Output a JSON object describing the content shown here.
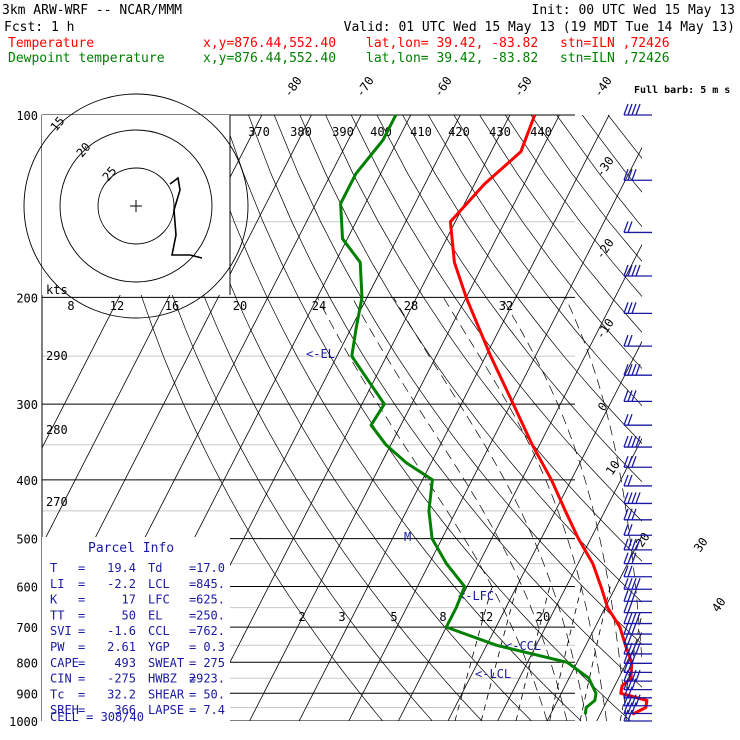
{
  "header": {
    "model": "3km ARW-WRF -- NCAR/MMM",
    "init": "Init: 00 UTC Wed 15 May 13",
    "fcst": "Fcst:    1 h",
    "valid": "Valid: 01 UTC Wed 15 May 13 (19 MDT Tue 14 May 13)",
    "temp_label": "Temperature",
    "dew_label": "Dewpoint temperature",
    "xy": "x,y=876.44,552.40",
    "latlon": "lat,lon= 39.42, -83.82",
    "stn": "stn=ILN ,72426"
  },
  "colors": {
    "temperature": "#ff0000",
    "dewpoint": "#008000",
    "annotation": "#1a1aa0",
    "axes": "#000000"
  },
  "chart_data": {
    "type": "line",
    "title": "",
    "pressure_levels": [
      1000,
      900,
      800,
      700,
      600,
      500,
      400,
      300,
      200,
      100
    ],
    "isotherm_labels": [
      "-80",
      "-70",
      "-60",
      "-50",
      "-40",
      "-30",
      "-20",
      "-10",
      "0",
      "10",
      "20",
      "30",
      "40"
    ],
    "theta_e_labels": [
      "370",
      "380",
      "390",
      "400",
      "410",
      "420",
      "430",
      "440"
    ],
    "theta_labels": [
      "290",
      "280",
      "270"
    ],
    "mixing_ratio_labels": [
      "2",
      "3",
      "5",
      "8",
      "12",
      "20"
    ],
    "upper_mixing_labels": [
      "8",
      "12",
      "16",
      "20",
      "24",
      "28",
      "32"
    ],
    "series": [
      {
        "name": "Temperature",
        "points": [
          [
            975,
            26.5
          ],
          [
            950,
            28.5
          ],
          [
            925,
            28.0
          ],
          [
            900,
            22.0
          ],
          [
            875,
            21.5
          ],
          [
            850,
            22.5
          ],
          [
            800,
            21.0
          ],
          [
            750,
            18.0
          ],
          [
            700,
            15.0
          ],
          [
            650,
            10.5
          ],
          [
            600,
            7.0
          ],
          [
            550,
            3.0
          ],
          [
            500,
            -2.5
          ],
          [
            450,
            -8.0
          ],
          [
            400,
            -14.0
          ],
          [
            350,
            -21.5
          ],
          [
            300,
            -29.5
          ],
          [
            250,
            -39.0
          ],
          [
            200,
            -50.0
          ],
          [
            175,
            -56.0
          ],
          [
            150,
            -61.0
          ],
          [
            130,
            -58.0
          ],
          [
            115,
            -54.0
          ],
          [
            100,
            -55.0
          ]
        ]
      },
      {
        "name": "Dewpoint temperature",
        "points": [
          [
            975,
            17.0
          ],
          [
            950,
            16.5
          ],
          [
            925,
            17.5
          ],
          [
            900,
            17.0
          ],
          [
            875,
            15.5
          ],
          [
            850,
            14.0
          ],
          [
            800,
            8.0
          ],
          [
            750,
            -8.0
          ],
          [
            700,
            -20.0
          ],
          [
            650,
            -20.0
          ],
          [
            600,
            -20.5
          ],
          [
            550,
            -26.5
          ],
          [
            500,
            -32.0
          ],
          [
            450,
            -35.5
          ],
          [
            400,
            -38.0
          ],
          [
            375,
            -45.0
          ],
          [
            350,
            -51.0
          ],
          [
            325,
            -56.0
          ],
          [
            300,
            -55.5
          ],
          [
            275,
            -61.0
          ],
          [
            250,
            -67.0
          ],
          [
            225,
            -69.0
          ],
          [
            200,
            -71.0
          ],
          [
            175,
            -75.0
          ],
          [
            160,
            -81.0
          ],
          [
            140,
            -85.0
          ],
          [
            125,
            -85.0
          ],
          [
            110,
            -83.0
          ],
          [
            100,
            -83.0
          ]
        ]
      }
    ],
    "annotations": [
      "<-EL",
      "<-LFC",
      "<-CCL",
      "<-LCL",
      "M"
    ],
    "hodograph": {
      "ring_labels": [
        "25",
        "20",
        "15"
      ],
      "axis_label": "kts"
    },
    "wind_barbs_label": "Full barb: 5 m s",
    "wind_barbs_count": 33
  },
  "parcel_info": {
    "title": "Parcel Info",
    "rows": [
      [
        "T",
        "=",
        "19.4",
        "Td",
        "=",
        "17.0"
      ],
      [
        "LI",
        "=",
        "-2.2",
        "LCL",
        "=",
        "845."
      ],
      [
        "K",
        "=",
        "17",
        "LFC",
        "=",
        "625."
      ],
      [
        "TT",
        "=",
        "50",
        "EL",
        "=",
        "250."
      ],
      [
        "SVI",
        "=",
        "-1.6",
        "CCL",
        "=",
        "762."
      ],
      [
        "PW",
        "=",
        "2.61",
        "YGP",
        "=",
        "0.3"
      ],
      [
        "CAPE",
        "=",
        "493",
        "SWEAT",
        "=",
        "275"
      ],
      [
        "CIN",
        "=",
        "-275",
        "HWBZ",
        "=",
        "2923."
      ],
      [
        "Tc",
        "=",
        "32.2",
        "SHEAR",
        "=",
        "50."
      ],
      [
        "SREH",
        "=",
        "366",
        "LAPSE",
        "=",
        "7.4"
      ]
    ],
    "cell": "CELL = 308/40"
  }
}
